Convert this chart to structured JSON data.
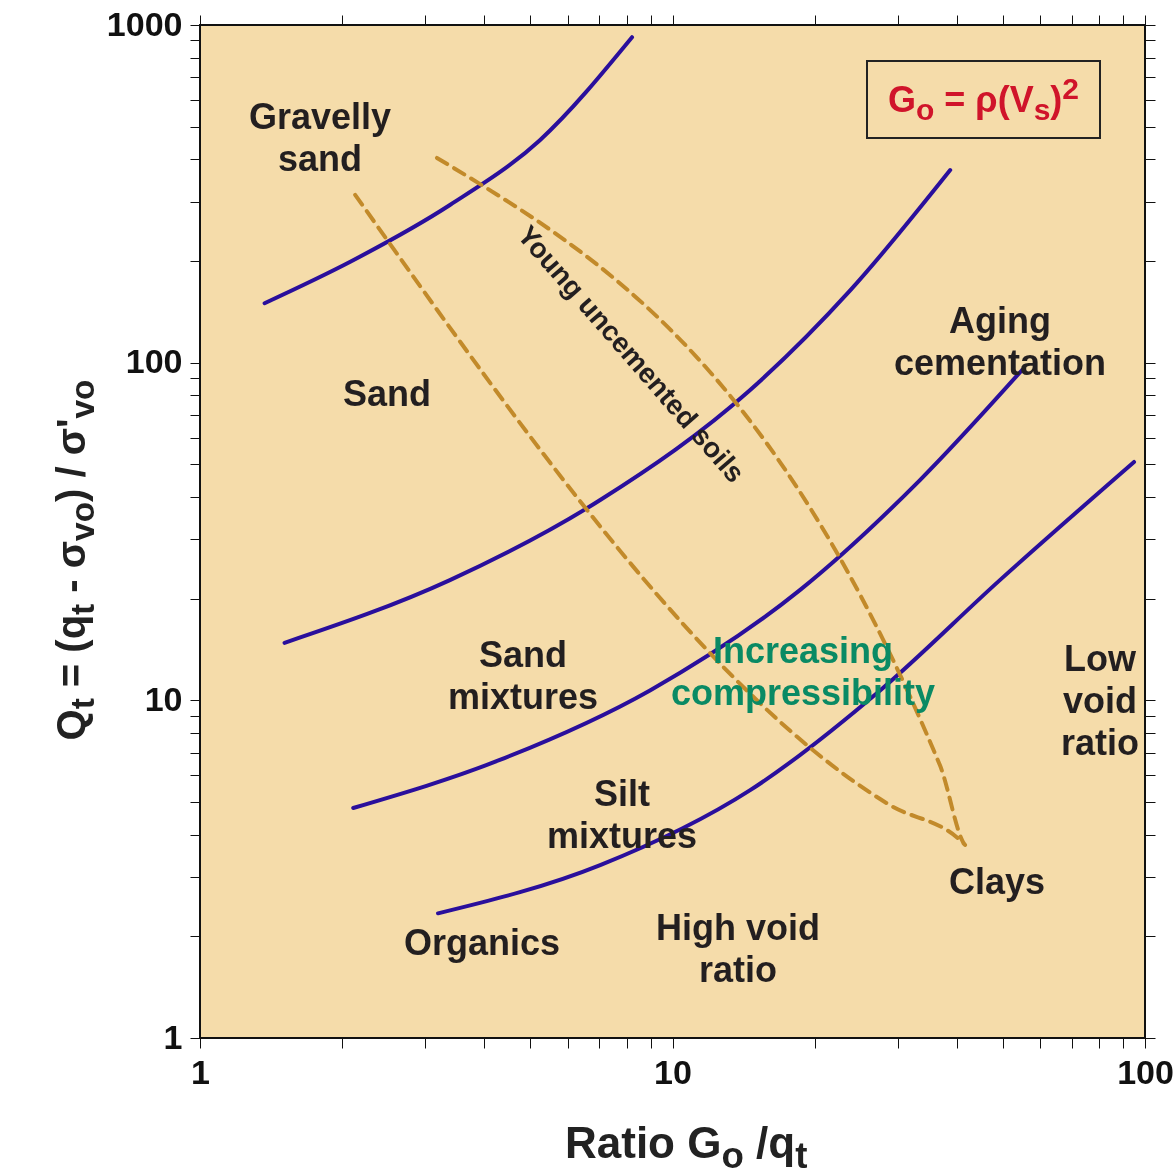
{
  "chart_data": {
    "type": "line",
    "log": "xy",
    "xlabel": "Ratio G$_{o}$ /q$_{t}$",
    "ylabel": "Q$_{t}$ = (q$_{t}$ - σ$_{vo}$) / σ'$_{vo}$",
    "xlim": [
      1,
      100
    ],
    "ylim": [
      1,
      1000
    ],
    "xticks": [
      1,
      {
        "value": 2,
        "label": null
      },
      {
        "value": 3,
        "label": null
      },
      {
        "value": 4,
        "label": null
      },
      {
        "value": 5,
        "label": null
      },
      {
        "value": 6,
        "label": null
      },
      {
        "value": 7,
        "label": null
      },
      {
        "value": 8,
        "label": null
      },
      {
        "value": 9,
        "label": null
      },
      10,
      {
        "value": 20,
        "label": null
      },
      {
        "value": 30,
        "label": null
      },
      {
        "value": 40,
        "label": null
      },
      {
        "value": 50,
        "label": null
      },
      {
        "value": 60,
        "label": null
      },
      {
        "value": 70,
        "label": null
      },
      {
        "value": 80,
        "label": null
      },
      {
        "value": 90,
        "label": null
      },
      100
    ],
    "yticks": [
      1,
      {
        "value": 2,
        "label": null
      },
      {
        "value": 3,
        "label": null
      },
      {
        "value": 4,
        "label": null
      },
      {
        "value": 5,
        "label": null
      },
      {
        "value": 6,
        "label": null
      },
      {
        "value": 7,
        "label": null
      },
      {
        "value": 8,
        "label": null
      },
      {
        "value": 9,
        "label": null
      },
      10,
      {
        "value": 20,
        "label": null
      },
      {
        "value": 30,
        "label": null
      },
      {
        "value": 40,
        "label": null
      },
      {
        "value": 50,
        "label": null
      },
      {
        "value": 60,
        "label": null
      },
      {
        "value": 70,
        "label": null
      },
      {
        "value": 80,
        "label": null
      },
      {
        "value": 90,
        "label": null
      },
      100,
      {
        "value": 200,
        "label": null
      },
      {
        "value": 300,
        "label": null
      },
      {
        "value": 400,
        "label": null
      },
      {
        "value": 500,
        "label": null
      },
      {
        "value": 600,
        "label": null
      },
      {
        "value": 700,
        "label": null
      },
      {
        "value": 800,
        "label": null
      },
      {
        "value": 900,
        "label": null
      },
      1000
    ],
    "grid": false,
    "series": [
      {
        "color": "#2a0f9c",
        "line_style": "solid",
        "x": [
          1.37,
          2.08,
          3.38,
          5.24,
          8.21
        ],
        "values": [
          150,
          199,
          293,
          456,
          920
        ]
      },
      {
        "color": "#2a0f9c",
        "line_style": "solid",
        "x": [
          1.51,
          3.38,
          7.03,
          14.6,
          23.8,
          38.7
        ],
        "values": [
          14.8,
          22.7,
          39.2,
          83,
          164,
          372
        ]
      },
      {
        "color": "#2a0f9c",
        "line_style": "solid",
        "x": [
          2.11,
          4.31,
          8.96,
          18.6,
          33.4,
          54.9
        ],
        "values": [
          4.8,
          6.66,
          10.7,
          21.2,
          44.9,
          95
        ]
      },
      {
        "color": "#2a0f9c",
        "line_style": "solid",
        "x": [
          3.19,
          7.03,
          14.6,
          27.5,
          49.3,
          94.8
        ],
        "values": [
          2.34,
          3.25,
          5.42,
          10.7,
          22.7,
          50.8
        ]
      },
      {
        "color": "#c28a2a",
        "line_style": "dashed",
        "x": [
          2.13,
          28.8,
          41.6,
          36.8,
          3.1
        ],
        "values": [
          314,
          4.9,
          3.73,
          6.43,
          412
        ]
      }
    ],
    "annotations": [
      "Gravelly\nsand",
      "Sand",
      "Sand\nmixtures",
      "Silt\nmixtures",
      "Organics",
      "High void\nratio",
      "Clays",
      "Low\nvoid\nratio",
      "Aging\ncementation",
      "Increasing\ncompressibility",
      "Young uncemented soils",
      "G$_{o}$ = ρ(V$_{s}$)$^{2}$"
    ]
  }
}
